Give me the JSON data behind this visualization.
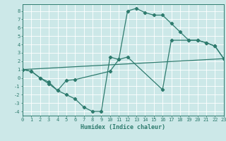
{
  "title": "",
  "xlabel": "Humidex (Indice chaleur)",
  "bg_color": "#cce8e8",
  "grid_color": "#ffffff",
  "line_color": "#2e7b6e",
  "markersize": 2.2,
  "linewidth": 0.9,
  "curve1": [
    [
      0,
      1
    ],
    [
      1,
      0.8
    ],
    [
      2,
      0.0
    ],
    [
      3,
      -0.7
    ],
    [
      4,
      -1.5
    ],
    [
      5,
      -2.0
    ],
    [
      6,
      -2.5
    ],
    [
      7,
      -3.5
    ],
    [
      8,
      -4.0
    ],
    [
      9,
      -4.0
    ],
    [
      10,
      2.5
    ],
    [
      11,
      2.2
    ],
    [
      12,
      8.0
    ],
    [
      13,
      8.3
    ],
    [
      14,
      7.8
    ],
    [
      15,
      7.5
    ],
    [
      16,
      7.5
    ],
    [
      17,
      6.5
    ],
    [
      18,
      5.5
    ],
    [
      19,
      4.5
    ],
    [
      20,
      4.5
    ],
    [
      21,
      4.2
    ],
    [
      22,
      3.8
    ],
    [
      23,
      2.3
    ]
  ],
  "curve2": [
    [
      0,
      1.0
    ],
    [
      1,
      0.8
    ],
    [
      2,
      0.0
    ],
    [
      3,
      -0.5
    ],
    [
      4,
      -1.5
    ],
    [
      5,
      -0.3
    ],
    [
      6,
      -0.2
    ],
    [
      10,
      0.8
    ],
    [
      11,
      2.2
    ],
    [
      12,
      2.5
    ],
    [
      16,
      -1.4
    ],
    [
      17,
      4.5
    ],
    [
      19,
      4.5
    ],
    [
      20,
      4.5
    ],
    [
      21,
      4.2
    ],
    [
      22,
      3.8
    ],
    [
      23,
      2.3
    ]
  ],
  "curve3": [
    [
      0,
      1.0
    ],
    [
      23,
      2.3
    ]
  ],
  "xlim": [
    0,
    23
  ],
  "ylim": [
    -4.5,
    8.8
  ],
  "xticks": [
    0,
    1,
    2,
    3,
    4,
    5,
    6,
    7,
    8,
    9,
    10,
    11,
    12,
    13,
    14,
    15,
    16,
    17,
    18,
    19,
    20,
    21,
    22,
    23
  ],
  "yticks": [
    -4,
    -3,
    -2,
    -1,
    0,
    1,
    2,
    3,
    4,
    5,
    6,
    7,
    8
  ],
  "tick_fontsize": 5.0,
  "xlabel_fontsize": 6.0
}
